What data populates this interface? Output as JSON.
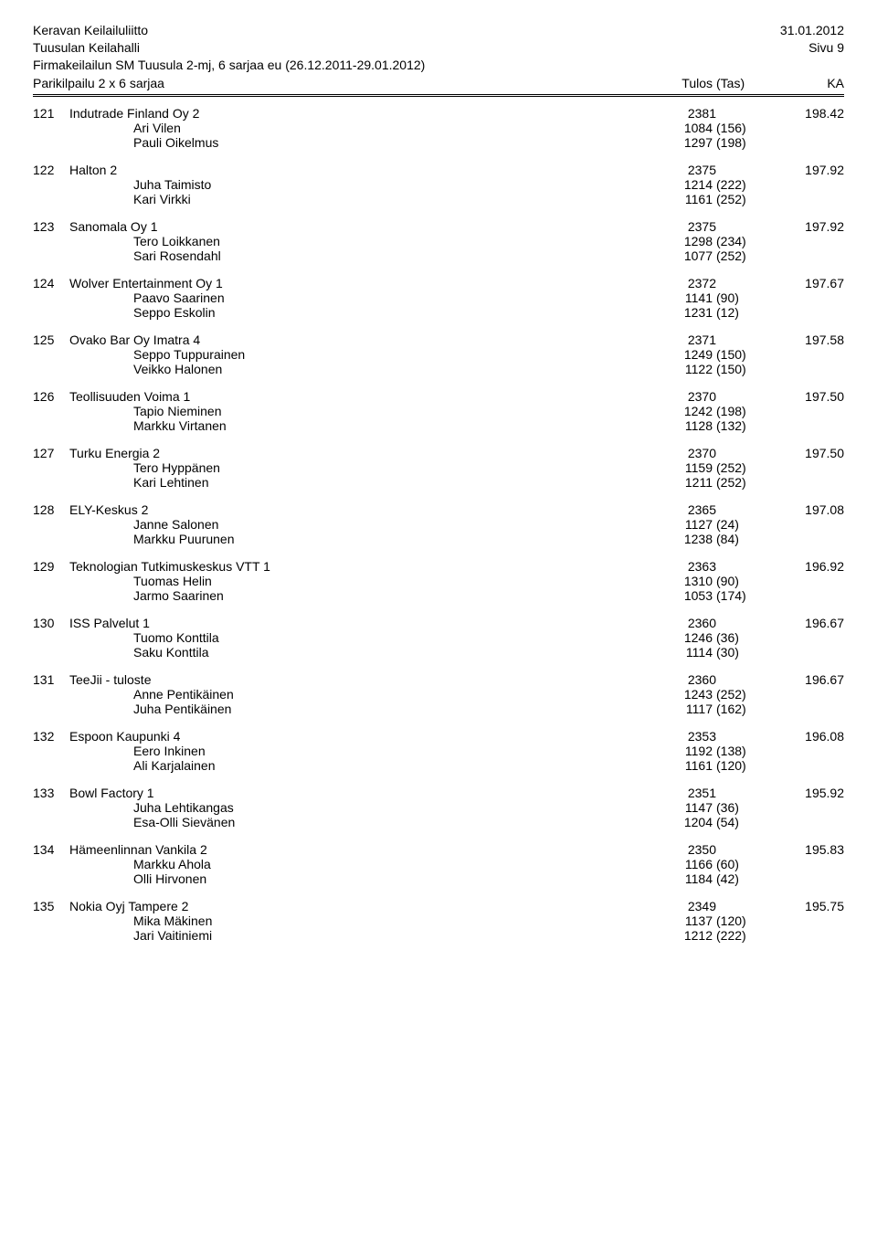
{
  "header": {
    "org": "Keravan Keilailuliitto",
    "hall": "Tuusulan Keilahalli",
    "event": "Firmakeilailun SM Tuusula 2-mj, 6 sarjaa eu (26.12.2011-29.01.2012)",
    "date": "31.01.2012",
    "page": "Sivu 9"
  },
  "subheader": {
    "left": "Parikilpailu 2 x 6 sarjaa",
    "tulos": "Tulos",
    "tas": "(Tas)",
    "ka": "KA"
  },
  "entries": [
    {
      "rank": "121",
      "team": "Indutrade Finland Oy 2",
      "score": "2381",
      "ka": "198.42",
      "players": [
        {
          "name": "Ari Vilen",
          "score": "1084",
          "tas": "(156)"
        },
        {
          "name": "Pauli Oikelmus",
          "score": "1297",
          "tas": "(198)"
        }
      ]
    },
    {
      "rank": "122",
      "team": "Halton 2",
      "score": "2375",
      "ka": "197.92",
      "players": [
        {
          "name": "Juha Taimisto",
          "score": "1214",
          "tas": "(222)"
        },
        {
          "name": "Kari Virkki",
          "score": "1161",
          "tas": "(252)"
        }
      ]
    },
    {
      "rank": "123",
      "team": "Sanomala Oy 1",
      "score": "2375",
      "ka": "197.92",
      "players": [
        {
          "name": "Tero Loikkanen",
          "score": "1298",
          "tas": "(234)"
        },
        {
          "name": "Sari Rosendahl",
          "score": "1077",
          "tas": "(252)"
        }
      ]
    },
    {
      "rank": "124",
      "team": "Wolver Entertainment Oy 1",
      "score": "2372",
      "ka": "197.67",
      "players": [
        {
          "name": "Paavo Saarinen",
          "score": "1141",
          "tas": "(90)"
        },
        {
          "name": "Seppo Eskolin",
          "score": "1231",
          "tas": "(12)"
        }
      ]
    },
    {
      "rank": "125",
      "team": "Ovako Bar Oy Imatra 4",
      "score": "2371",
      "ka": "197.58",
      "players": [
        {
          "name": "Seppo Tuppurainen",
          "score": "1249",
          "tas": "(150)"
        },
        {
          "name": "Veikko Halonen",
          "score": "1122",
          "tas": "(150)"
        }
      ]
    },
    {
      "rank": "126",
      "team": "Teollisuuden Voima 1",
      "score": "2370",
      "ka": "197.50",
      "players": [
        {
          "name": "Tapio Nieminen",
          "score": "1242",
          "tas": "(198)"
        },
        {
          "name": "Markku Virtanen",
          "score": "1128",
          "tas": "(132)"
        }
      ]
    },
    {
      "rank": "127",
      "team": "Turku Energia 2",
      "score": "2370",
      "ka": "197.50",
      "players": [
        {
          "name": "Tero Hyppänen",
          "score": "1159",
          "tas": "(252)"
        },
        {
          "name": "Kari Lehtinen",
          "score": "1211",
          "tas": "(252)"
        }
      ]
    },
    {
      "rank": "128",
      "team": "ELY-Keskus 2",
      "score": "2365",
      "ka": "197.08",
      "players": [
        {
          "name": "Janne Salonen",
          "score": "1127",
          "tas": "(24)"
        },
        {
          "name": "Markku Puurunen",
          "score": "1238",
          "tas": "(84)"
        }
      ]
    },
    {
      "rank": "129",
      "team": "Teknologian Tutkimuskeskus VTT 1",
      "score": "2363",
      "ka": "196.92",
      "players": [
        {
          "name": "Tuomas Helin",
          "score": "1310",
          "tas": "(90)"
        },
        {
          "name": "Jarmo Saarinen",
          "score": "1053",
          "tas": "(174)"
        }
      ]
    },
    {
      "rank": "130",
      "team": "ISS Palvelut 1",
      "score": "2360",
      "ka": "196.67",
      "players": [
        {
          "name": "Tuomo Konttila",
          "score": "1246",
          "tas": "(36)"
        },
        {
          "name": "Saku Konttila",
          "score": "1114",
          "tas": "(30)"
        }
      ]
    },
    {
      "rank": "131",
      "team": "TeeJii - tuloste",
      "score": "2360",
      "ka": "196.67",
      "players": [
        {
          "name": "Anne Pentikäinen",
          "score": "1243",
          "tas": "(252)"
        },
        {
          "name": "Juha Pentikäinen",
          "score": "1117",
          "tas": "(162)"
        }
      ]
    },
    {
      "rank": "132",
      "team": "Espoon Kaupunki 4",
      "score": "2353",
      "ka": "196.08",
      "players": [
        {
          "name": "Eero Inkinen",
          "score": "1192",
          "tas": "(138)"
        },
        {
          "name": "Ali Karjalainen",
          "score": "1161",
          "tas": "(120)"
        }
      ]
    },
    {
      "rank": "133",
      "team": "Bowl Factory 1",
      "score": "2351",
      "ka": "195.92",
      "players": [
        {
          "name": "Juha Lehtikangas",
          "score": "1147",
          "tas": "(36)"
        },
        {
          "name": "Esa-Olli Sievänen",
          "score": "1204",
          "tas": "(54)"
        }
      ]
    },
    {
      "rank": "134",
      "team": "Hämeenlinnan Vankila 2",
      "score": "2350",
      "ka": "195.83",
      "players": [
        {
          "name": "Markku Ahola",
          "score": "1166",
          "tas": "(60)"
        },
        {
          "name": "Olli Hirvonen",
          "score": "1184",
          "tas": "(42)"
        }
      ]
    },
    {
      "rank": "135",
      "team": "Nokia Oyj Tampere 2",
      "score": "2349",
      "ka": "195.75",
      "players": [
        {
          "name": "Mika Mäkinen",
          "score": "1137",
          "tas": "(120)"
        },
        {
          "name": "Jari Vaitiniemi",
          "score": "1212",
          "tas": "(222)"
        }
      ]
    }
  ]
}
